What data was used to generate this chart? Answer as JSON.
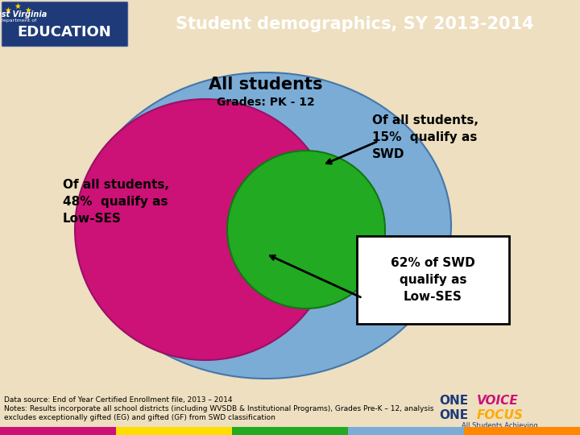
{
  "title": "Student demographics, SY 2013-2014",
  "header_bg": "#1e3a78",
  "header_text_color": "#ffffff",
  "bg_color": "#eddfc0",
  "main_circle_label": "All students",
  "main_circle_sublabel": "Grades: PK - 12",
  "main_circle_color": "#7bacd6",
  "lowses_circle_color": "#cc1177",
  "swd_circle_color": "#22aa22",
  "lowses_label": "Of all students,\n48%  qualify as\nLow-SES",
  "swd_label": "Of all students,\n15%  qualify as\nSWD",
  "overlap_label": "62% of SWD\nqualify as\nLow-SES",
  "datasource_line1": "Data source: End of Year Certified Enrollment file, 2013 – 2014",
  "datasource_line2": "Notes: Results incorporate all school districts (including WVSDB & Institutional Programs), Grades Pre-K – 12, analysis",
  "datasource_line3": "excludes exceptionally gifted (EG) and gifted (GF) from SWD classification",
  "footer_colors": [
    "#cc1177",
    "#ffdd00",
    "#22aa22",
    "#7bacd6",
    "#ff8800"
  ],
  "one_voice_color": "#cc1177",
  "one_focus_color": "#ffaa00",
  "one_color": "#1e3a78"
}
